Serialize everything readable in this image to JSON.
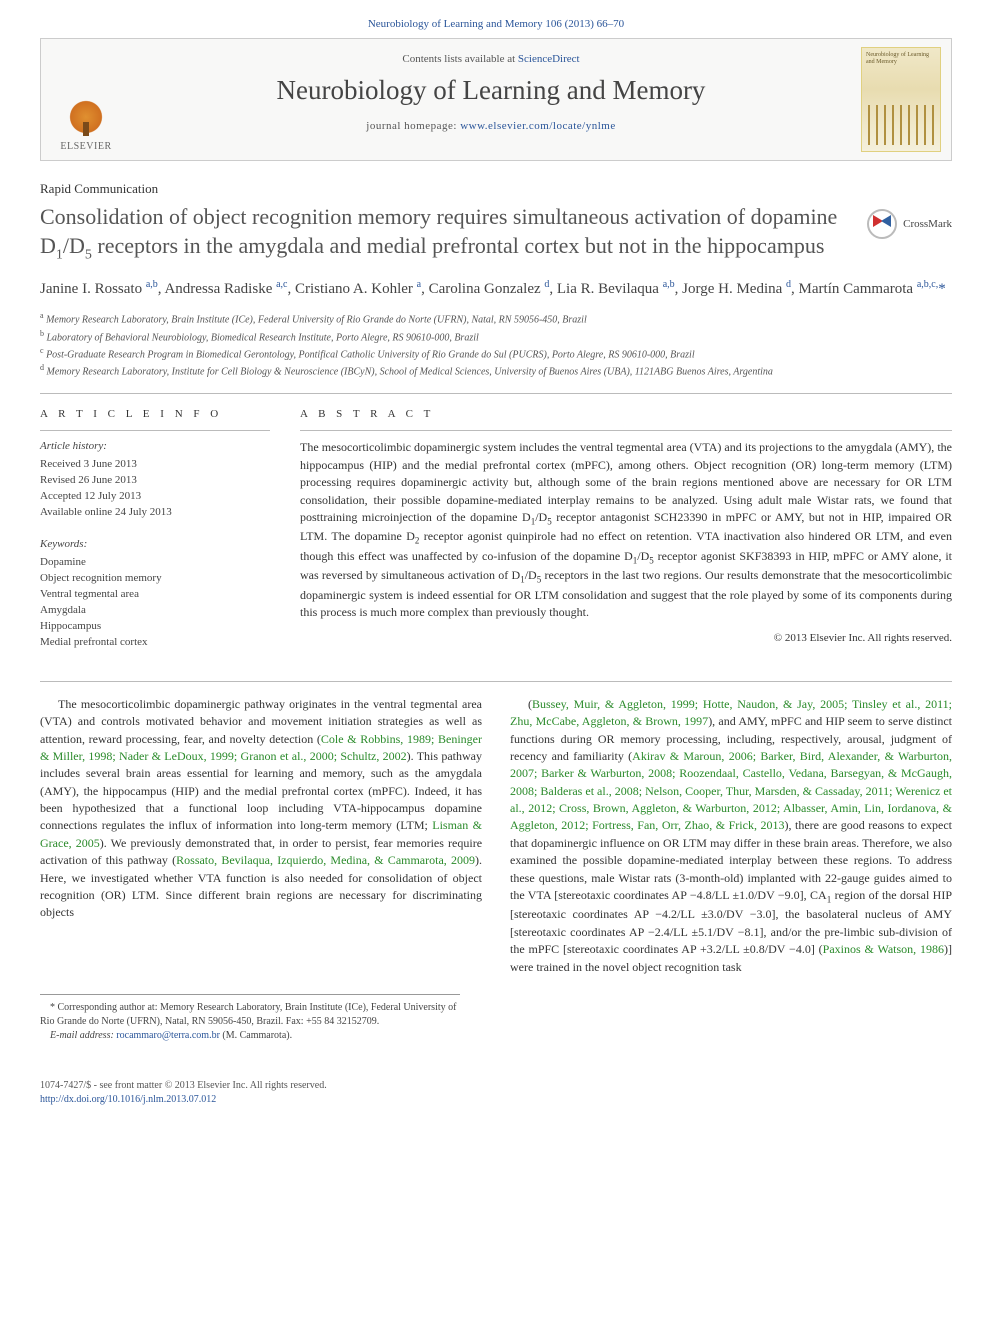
{
  "header": {
    "citation": "Neurobiology of Learning and Memory 106 (2013) 66–70"
  },
  "masthead": {
    "publisher_label": "ELSEVIER",
    "contents_prefix": "Contents lists available at ",
    "contents_link": "ScienceDirect",
    "journal_title": "Neurobiology of Learning and Memory",
    "homepage_prefix": "journal homepage: ",
    "homepage_url": "www.elsevier.com/locate/ynlme",
    "cover_title": "Neurobiology of Learning and Memory"
  },
  "article": {
    "type": "Rapid Communication",
    "title_html": "Consolidation of object recognition memory requires simultaneous activation of dopamine D<sub>1</sub>/D<sub>5</sub> receptors in the amygdala and medial prefrontal cortex but not in the hippocampus",
    "crossmark_label": "CrossMark",
    "authors_html": "Janine I. Rossato&nbsp;<sup>a,b</sup>, Andressa Radiske&nbsp;<sup>a,c</sup>, Cristiano A. Kohler&nbsp;<sup>a</sup>, Carolina Gonzalez&nbsp;<sup>d</sup>, Lia R. Bevilaqua&nbsp;<sup>a,b</sup>, Jorge H. Medina&nbsp;<sup>d</sup>, Martín Cammarota&nbsp;<sup>a,b,c,</sup><span class=\"corr\">*</span>",
    "affiliations": [
      {
        "sup": "a",
        "text": "Memory Research Laboratory, Brain Institute (ICe), Federal University of Rio Grande do Norte (UFRN), Natal, RN 59056-450, Brazil"
      },
      {
        "sup": "b",
        "text": "Laboratory of Behavioral Neurobiology, Biomedical Research Institute, Porto Alegre, RS 90610-000, Brazil"
      },
      {
        "sup": "c",
        "text": "Post-Graduate Research Program in Biomedical Gerontology, Pontifical Catholic University of Rio Grande do Sul (PUCRS), Porto Alegre, RS 90610-000, Brazil"
      },
      {
        "sup": "d",
        "text": "Memory Research Laboratory, Institute for Cell Biology & Neuroscience (IBCyN), School of Medical Sciences, University of Buenos Aires (UBA), 1121ABG Buenos Aires, Argentina"
      }
    ]
  },
  "info": {
    "heading_info": "A R T I C L E   I N F O",
    "history_label": "Article history:",
    "history": [
      "Received 3 June 2013",
      "Revised 26 June 2013",
      "Accepted 12 July 2013",
      "Available online 24 July 2013"
    ],
    "keywords_label": "Keywords:",
    "keywords": [
      "Dopamine",
      "Object recognition memory",
      "Ventral tegmental area",
      "Amygdala",
      "Hippocampus",
      "Medial prefrontal cortex"
    ]
  },
  "abstract": {
    "heading": "A B S T R A C T",
    "text_html": "The mesocorticolimbic dopaminergic system includes the ventral tegmental area (VTA) and its projections to the amygdala (AMY), the hippocampus (HIP) and the medial prefrontal cortex (mPFC), among others. Object recognition (OR) long-term memory (LTM) processing requires dopaminergic activity but, although some of the brain regions mentioned above are necessary for OR LTM consolidation, their possible dopamine-mediated interplay remains to be analyzed. Using adult male Wistar rats, we found that posttraining microinjection of the dopamine D<sub>1</sub>/D<sub>5</sub> receptor antagonist SCH23390 in mPFC or AMY, but not in HIP, impaired OR LTM. The dopamine D<sub>2</sub> receptor agonist quinpirole had no effect on retention. VTA inactivation also hindered OR LTM, and even though this effect was unaffected by co-infusion of the dopamine D<sub>1</sub>/D<sub>5</sub> receptor agonist SKF38393 in HIP, mPFC or AMY alone, it was reversed by simultaneous activation of D<sub>1</sub>/D<sub>5</sub> receptors in the last two regions. Our results demonstrate that the mesocorticolimbic dopaminergic system is indeed essential for OR LTM consolidation and suggest that the role played by some of its components during this process is much more complex than previously thought.",
    "copyright": "© 2013 Elsevier Inc. All rights reserved."
  },
  "body": {
    "col1_html": "The mesocorticolimbic dopaminergic pathway originates in the ventral tegmental area (VTA) and controls motivated behavior and movement initiation strategies as well as attention, reward processing, fear, and novelty detection (<span class=\"ref\">Cole &amp; Robbins, 1989; Beninger &amp; Miller, 1998; Nader &amp; LeDoux, 1999; Granon et al., 2000; Schultz, 2002</span>). This pathway includes several brain areas essential for learning and memory, such as the amygdala (AMY), the hippocampus (HIP) and the medial prefrontal cortex (mPFC). Indeed, it has been hypothesized that a functional loop including VTA-hippocampus dopamine connections regulates the influx of information into long-term memory (LTM; <span class=\"ref\">Lisman &amp; Grace, 2005</span>). We previously demonstrated that, in order to persist, fear memories require activation of this pathway (<span class=\"ref\">Rossato, Bevilaqua, Izquierdo, Medina, &amp; Cammarota, 2009</span>). Here, we investigated whether VTA function is also needed for consolidation of object recognition (OR) LTM. Since different brain regions are necessary for discriminating objects",
    "col2_html": "(<span class=\"ref\">Bussey, Muir, &amp; Aggleton, 1999; Hotte, Naudon, &amp; Jay, 2005; Tinsley et al., 2011; Zhu, McCabe, Aggleton, &amp; Brown, 1997</span>), and AMY, mPFC and HIP seem to serve distinct functions during OR memory processing, including, respectively, arousal, judgment of recency and familiarity (<span class=\"ref\">Akirav &amp; Maroun, 2006; Barker, Bird, Alexander, &amp; Warburton, 2007; Barker &amp; Warburton, 2008; Roozendaal, Castello, Vedana, Barsegyan, &amp; McGaugh, 2008; Balderas et al., 2008; Nelson, Cooper, Thur, Marsden, &amp; Cassaday, 2011; Werenicz et al., 2012; Cross, Brown, Aggleton, &amp; Warburton, 2012; Albasser, Amin, Lin, Iordanova, &amp; Aggleton, 2012; Fortress, Fan, Orr, Zhao, &amp; Frick, 2013</span>), there are good reasons to expect that dopaminergic influence on OR LTM may differ in these brain areas. Therefore, we also examined the possible dopamine-mediated interplay between these regions. To address these questions, male Wistar rats (3-month-old) implanted with 22-gauge guides aimed to the VTA [stereotaxic coordinates AP −4.8/LL ±1.0/DV −9.0], CA<sub>1</sub> region of the dorsal HIP [stereotaxic coordinates AP −4.2/LL ±3.0/DV −3.0], the basolateral nucleus of AMY [stereotaxic coordinates AP −2.4/LL ±5.1/DV −8.1], and/or the pre-limbic sub-division of the mPFC [stereotaxic coordinates AP +3.2/LL ±0.8/DV −4.0] (<span class=\"ref\">Paxinos &amp; Watson, 1986</span>)] were trained in the novel object recognition task"
  },
  "footnotes": {
    "corr_html": "* Corresponding author at: Memory Research Laboratory, Brain Institute (ICe), Federal University of Rio Grande do Norte (UFRN), Natal, RN 59056-450, Brazil. Fax: +55 84 32152709.",
    "email_label": "E-mail address:",
    "email": "rocammaro@terra.com.br",
    "email_suffix": "(M. Cammarota)."
  },
  "footer": {
    "issn_line": "1074-7427/$ - see front matter © 2013 Elsevier Inc. All rights reserved.",
    "doi": "http://dx.doi.org/10.1016/j.nlm.2013.07.012"
  },
  "colors": {
    "link": "#2a5599",
    "ref": "#2a8a2a",
    "text": "#333333",
    "muted": "#555555",
    "rule": "#bbbbbb",
    "background": "#ffffff"
  },
  "typography": {
    "body_pt": 12,
    "title_pt": 22,
    "journal_title_pt": 27,
    "small_pt": 10,
    "info_pt": 11
  }
}
